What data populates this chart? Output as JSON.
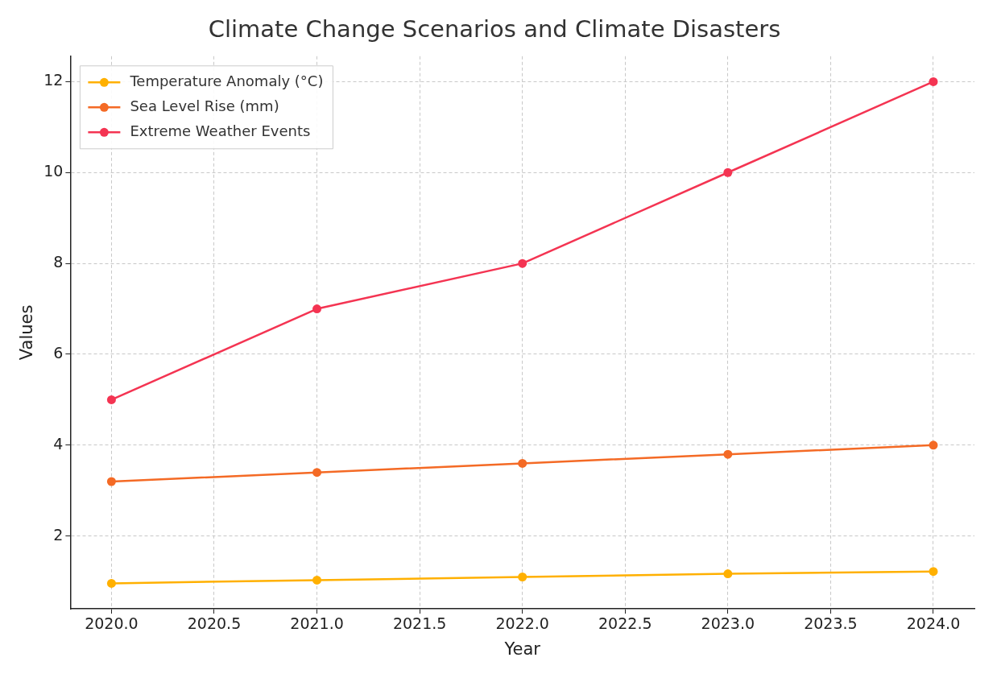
{
  "chart_data": {
    "type": "line",
    "title": "Climate Change Scenarios and Climate Disasters",
    "xlabel": "Year",
    "ylabel": "Values",
    "x": [
      2020,
      2021,
      2022,
      2023,
      2024
    ],
    "series": [
      {
        "name": "Temperature Anomaly (°C)",
        "color": "#ffb000",
        "values": [
          0.96,
          1.03,
          1.1,
          1.17,
          1.22
        ]
      },
      {
        "name": "Sea Level Rise (mm)",
        "color": "#f46a25",
        "values": [
          3.2,
          3.4,
          3.6,
          3.8,
          4.0
        ]
      },
      {
        "name": "Extreme Weather Events",
        "color": "#f43452",
        "values": [
          5,
          7,
          8,
          10,
          12
        ]
      }
    ],
    "xlim": [
      2019.8,
      2024.2
    ],
    "xticks": [
      {
        "value": 2020,
        "label": "2020.0"
      },
      {
        "value": 2020.5,
        "label": "2020.5"
      },
      {
        "value": 2021,
        "label": "2021.0"
      },
      {
        "value": 2021.5,
        "label": "2021.5"
      },
      {
        "value": 2022,
        "label": "2022.0"
      },
      {
        "value": 2022.5,
        "label": "2022.5"
      },
      {
        "value": 2023,
        "label": "2023.0"
      },
      {
        "value": 2023.5,
        "label": "2023.5"
      },
      {
        "value": 2024,
        "label": "2024.0"
      }
    ],
    "ylim": [
      0.4,
      12.56
    ],
    "yticks": [
      2,
      4,
      6,
      8,
      10,
      12
    ],
    "grid": true,
    "legend": "top left",
    "marker": "circle",
    "line_style": "solid"
  }
}
